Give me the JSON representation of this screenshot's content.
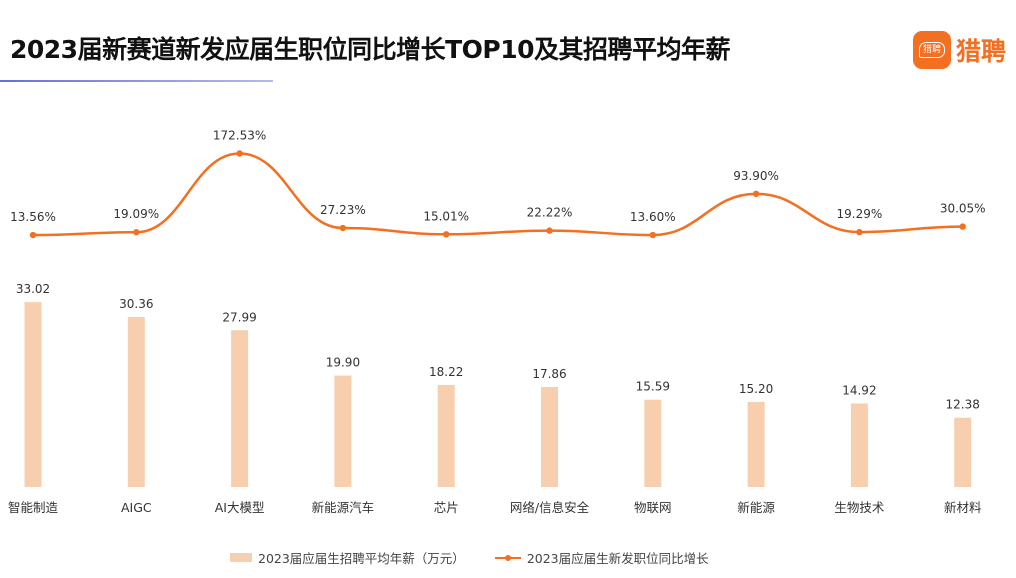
{
  "title": "2023届新赛道新发应届生职位同比增长TOP10及其招聘平均年薪",
  "logo": {
    "badge_text": "猎聘",
    "text": "猎聘",
    "color": "#f36f21"
  },
  "chart_data": {
    "type": "bar+line",
    "categories": [
      "智能制造",
      "AIGC",
      "AI大模型",
      "新能源汽车",
      "芯片",
      "网络/信息安全",
      "物联网",
      "新能源",
      "生物技术",
      "新材料"
    ],
    "series": [
      {
        "name": "2023届应届生招聘平均年薪（万元）",
        "type": "bar",
        "color": "#f8cfae",
        "values": [
          33.02,
          30.36,
          27.99,
          19.9,
          18.22,
          17.86,
          15.59,
          15.2,
          14.92,
          12.38
        ],
        "labels": [
          "33.02",
          "30.36",
          "27.99",
          "19.90",
          "18.22",
          "17.86",
          "15.59",
          "15.20",
          "14.92",
          "12.38"
        ]
      },
      {
        "name": "2023届应届生新发职位同比增长",
        "type": "line",
        "color": "#f36f21",
        "values": [
          13.56,
          19.09,
          172.53,
          27.23,
          15.01,
          22.22,
          13.6,
          93.9,
          19.29,
          30.05
        ],
        "labels": [
          "13.56%",
          "19.09%",
          "172.53%",
          "27.23%",
          "15.01%",
          "22.22%",
          "13.60%",
          "93.90%",
          "19.29%",
          "30.05%"
        ]
      }
    ],
    "grid": false,
    "legend_position": "bottom"
  }
}
